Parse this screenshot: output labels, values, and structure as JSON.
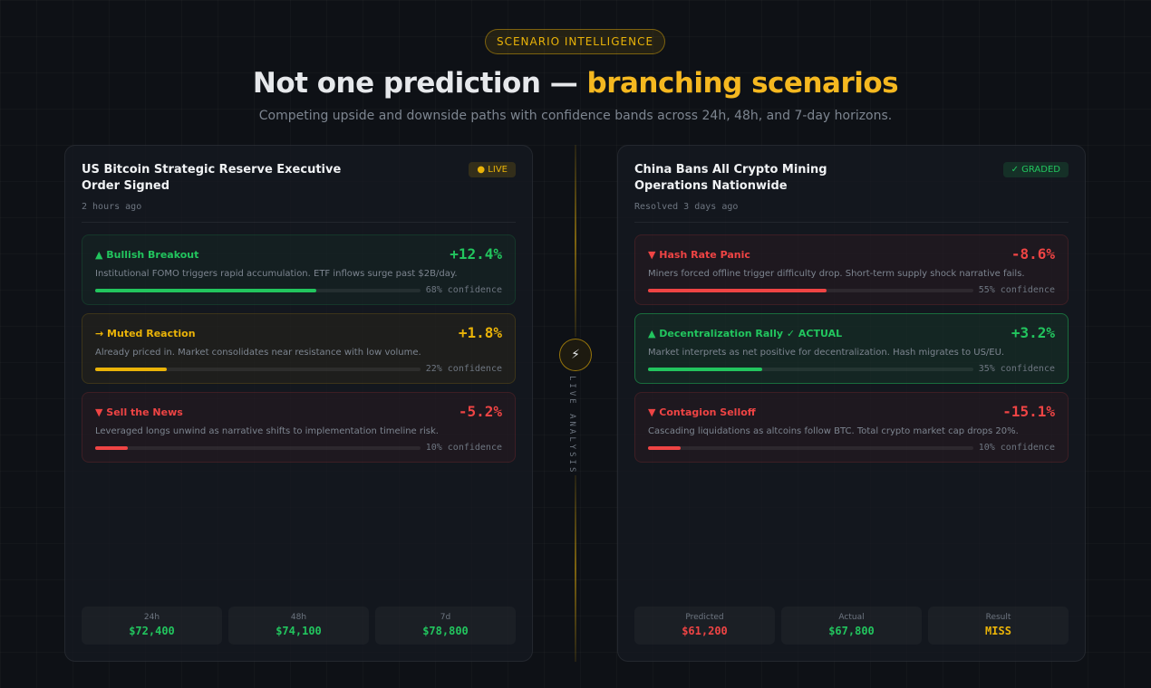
{
  "header": {
    "badge": "SCENARIO INTELLIGENCE",
    "title": "Not one prediction —",
    "title_highlight": "branching scenarios",
    "subtitle": "Competing upside and downside paths with confidence bands across 24h, 48h, and 7-day horizons."
  },
  "divider": {
    "icon": "⚡",
    "label": "LIVE ANALYSIS"
  },
  "cards": [
    {
      "title": "US Bitcoin Strategic Reserve Executive Order Signed",
      "time": "2 hours ago",
      "badge": "● LIVE",
      "badge_color": "#eab308",
      "scenarios": [
        {
          "name": "▲ Bullish Breakout",
          "change": "+12.4%",
          "description": "Institutional FOMO triggers rapid accumulation. ETF inflows surge past $2B/day.",
          "confidence": 68,
          "confidence_label": "68% confidence",
          "color": "#22c55e",
          "highlight": false
        },
        {
          "name": "→ Muted Reaction",
          "change": "+1.8%",
          "description": "Already priced in. Market consolidates near resistance with low volume.",
          "confidence": 22,
          "confidence_label": "22% confidence",
          "color": "#eab308",
          "highlight": false
        },
        {
          "name": "▼ Sell the News",
          "change": "-5.2%",
          "description": "Leveraged longs unwind as narrative shifts to implementation timeline risk.",
          "confidence": 10,
          "confidence_label": "10% confidence",
          "color": "#ef4444",
          "highlight": false
        }
      ],
      "stats": [
        {
          "label": "24h",
          "value": "$72,400",
          "color": "#22c55e"
        },
        {
          "label": "48h",
          "value": "$74,100",
          "color": "#22c55e"
        },
        {
          "label": "7d",
          "value": "$78,800",
          "color": "#22c55e"
        }
      ]
    },
    {
      "title": "China Bans All Crypto Mining Operations Nationwide",
      "time": "Resolved 3 days ago",
      "badge": "✓ GRADED",
      "badge_color": "#22c55e",
      "scenarios": [
        {
          "name": "▼ Hash Rate Panic",
          "change": "-8.6%",
          "description": "Miners forced offline trigger difficulty drop. Short-term supply shock narrative fails.",
          "confidence": 55,
          "confidence_label": "55% confidence",
          "color": "#ef4444",
          "highlight": false
        },
        {
          "name": "▲ Decentralization Rally ✓ ACTUAL",
          "change": "+3.2%",
          "description": "Market interprets as net positive for decentralization. Hash migrates to US/EU.",
          "confidence": 35,
          "confidence_label": "35% confidence",
          "color": "#22c55e",
          "highlight": true
        },
        {
          "name": "▼ Contagion Selloff",
          "change": "-15.1%",
          "description": "Cascading liquidations as altcoins follow BTC. Total crypto market cap drops 20%.",
          "confidence": 10,
          "confidence_label": "10% confidence",
          "color": "#ef4444",
          "highlight": false
        }
      ],
      "stats": [
        {
          "label": "Predicted",
          "value": "$61,200",
          "color": "#ef4444"
        },
        {
          "label": "Actual",
          "value": "$67,800",
          "color": "#22c55e"
        },
        {
          "label": "Result",
          "value": "MISS",
          "color": "#eab308"
        }
      ]
    }
  ]
}
